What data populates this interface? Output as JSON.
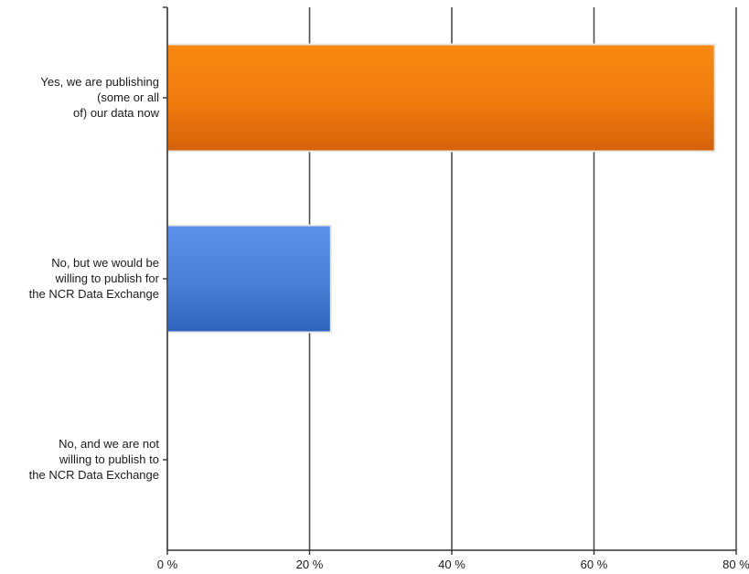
{
  "chart_data": {
    "type": "bar",
    "orientation": "horizontal",
    "categories": [
      [
        "Yes, we are publishing",
        "(some or all",
        "of) our data now"
      ],
      [
        "No, but we would be",
        "willing to publish for",
        "the NCR Data Exchange"
      ],
      [
        "No, and we are not",
        "willing to publish to",
        "the NCR Data Exchange"
      ]
    ],
    "values": [
      77,
      23,
      0
    ],
    "bar_colors": [
      "#ee7a10",
      "#4a7fd8",
      "#999999"
    ],
    "xlim": [
      0,
      80
    ],
    "xticks": [
      0,
      20,
      40,
      60,
      80
    ],
    "xtick_labels": [
      "0 %",
      "20 %",
      "40 %",
      "60 %",
      "80 %"
    ],
    "grid": true,
    "legend": "none"
  }
}
